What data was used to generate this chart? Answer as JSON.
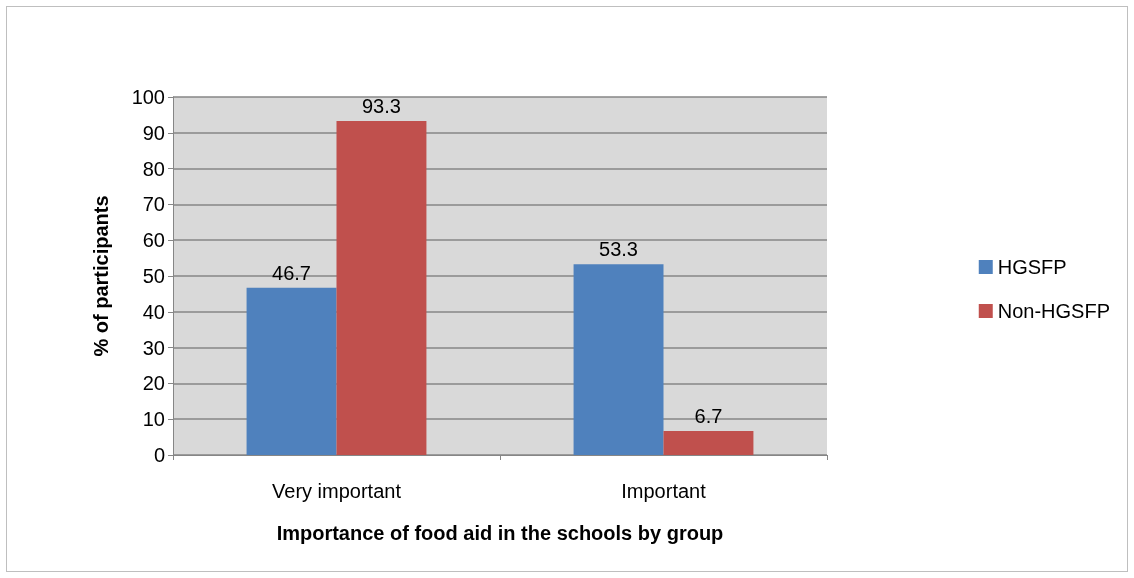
{
  "chart_data": {
    "type": "bar",
    "xlabel": "Importance of food aid in the schools by group",
    "ylabel": "% of participants",
    "categories": [
      "Very important",
      "Important"
    ],
    "series": [
      {
        "name": "HGSFP",
        "color": "#4f81bd",
        "values": [
          46.7,
          53.3
        ]
      },
      {
        "name": "Non-HGSFP",
        "color": "#c0504d",
        "values": [
          93.3,
          6.7
        ]
      }
    ],
    "ylim": [
      0,
      100
    ],
    "yticks": [
      0,
      10,
      20,
      30,
      40,
      50,
      60,
      70,
      80,
      90,
      100
    ],
    "grid": "y",
    "legend": "right",
    "data_labels": true
  }
}
